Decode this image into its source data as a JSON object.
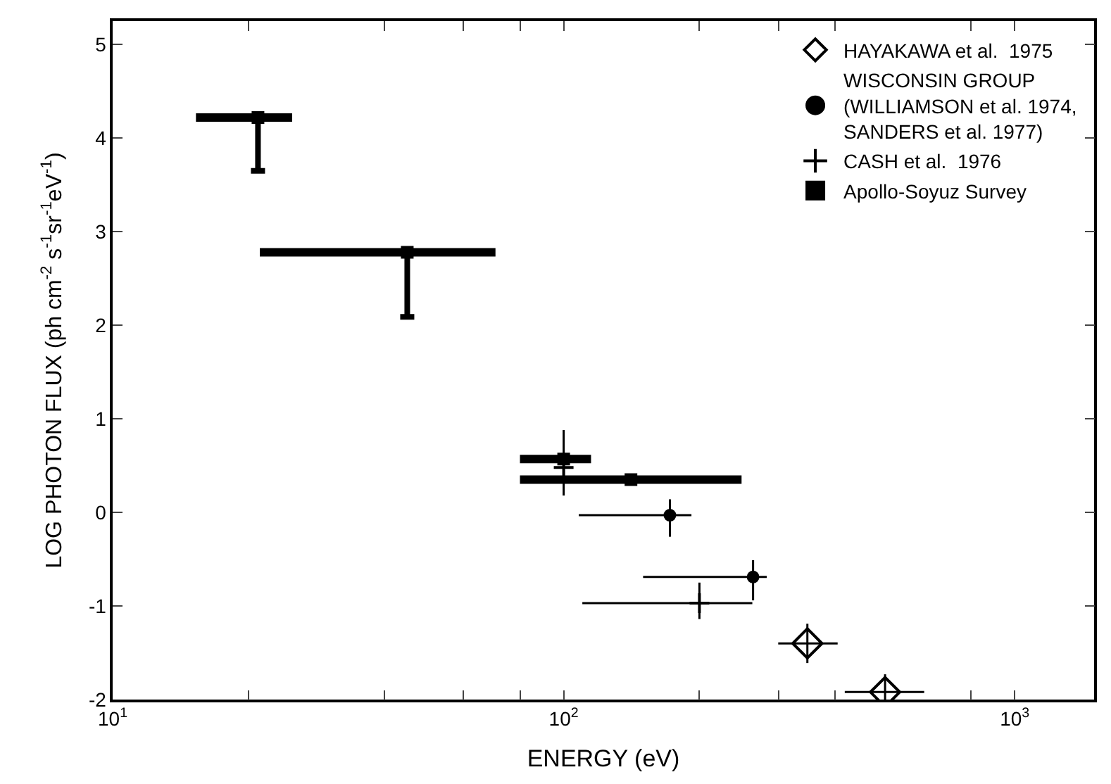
{
  "chart_data": {
    "type": "scatter",
    "xlabel": "ENERGY (eV)",
    "ylabel": "LOG PHOTON FLUX (ph cm$^{-2}$ s$^{-1}$sr$^{-1}$eV$^{-1}$)",
    "log": "x",
    "legend": "top right",
    "xlim": [
      10,
      1500
    ],
    "ylim": [
      -2,
      5.25
    ],
    "xticks": [
      {
        "value": 10,
        "label": "10$^{1}$"
      },
      {
        "value": 20,
        "label": null
      },
      {
        "value": 40,
        "label": null
      },
      {
        "value": 60,
        "label": null
      },
      {
        "value": 80,
        "label": null
      },
      {
        "value": 100,
        "label": "10$^{2}$"
      },
      {
        "value": 200,
        "label": null
      },
      {
        "value": 300,
        "label": null
      },
      {
        "value": 400,
        "label": null
      },
      {
        "value": 800,
        "label": null
      },
      {
        "value": 1000,
        "label": "10$^{3}$"
      }
    ],
    "yticks": [
      -2,
      -1,
      0,
      1,
      2,
      3,
      4,
      5
    ],
    "series": [
      {
        "name": "HAYAKAWA et al.  1975",
        "color": "#000000",
        "marker": "diamond",
        "x": [
          347,
          516
        ],
        "values": [
          -1.4,
          -1.92
        ],
        "xerrors": [
          [
            299,
            405
          ],
          [
            420,
            630
          ]
        ],
        "errors": [
          0.21,
          [
            -2.0,
            -1.73
          ]
        ]
      },
      {
        "name": "WISCONSIN GROUP\n(WILLIAMSON et al. 1974,\nSANDERS et al. 1977)",
        "color": "#000000",
        "marker": "circle",
        "x": [
          172,
          263
        ],
        "values": [
          -0.03,
          -0.69
        ],
        "xerrors": [
          [
            108,
            192
          ],
          [
            150,
            282
          ]
        ],
        "errors": [
          [
            -0.26,
            0.14
          ],
          [
            -0.94,
            -0.51
          ]
        ]
      },
      {
        "name": "CASH et al.  1976",
        "color": "#000000",
        "marker": "cross",
        "x": [
          100,
          200
        ],
        "values": [
          0.48,
          -0.97
        ],
        "xerrors": [
          null,
          [
            110,
            262
          ]
        ],
        "errors": [
          [
            0.18,
            0.88
          ],
          [
            -1.14,
            -0.75
          ]
        ]
      },
      {
        "name": "Apollo-Soyuz Survey",
        "color": "#000000",
        "marker": "square",
        "x": [
          21,
          45,
          100,
          141
        ],
        "values": [
          4.22,
          2.78,
          0.57,
          0.35
        ],
        "xerrors": [
          [
            15.3,
            25.0
          ],
          [
            21.2,
            70.6
          ],
          [
            80,
            115
          ],
          [
            80,
            248
          ]
        ],
        "errors": [
          [
            3.65,
            4.22
          ],
          [
            2.09,
            2.78
          ],
          null,
          null
        ]
      }
    ]
  }
}
